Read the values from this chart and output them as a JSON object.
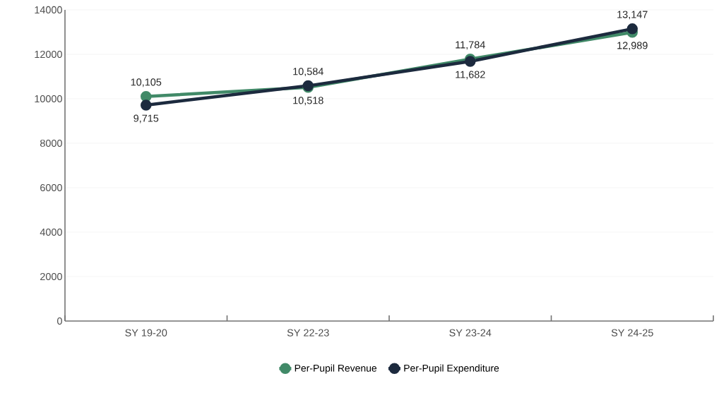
{
  "chart_data": {
    "type": "line",
    "categories": [
      "SY 19-20",
      "SY 22-23",
      "SY 23-24",
      "SY 24-25"
    ],
    "series": [
      {
        "name": "Per-Pupil Revenue",
        "color": "#418a68",
        "values": [
          10105,
          10518,
          11784,
          12989
        ],
        "value_labels": [
          "10,105",
          "10,518",
          "11,784",
          "12,989"
        ]
      },
      {
        "name": "Per-Pupil Expenditure",
        "color": "#1c2a3e",
        "values": [
          9715,
          10584,
          11682,
          13147
        ],
        "value_labels": [
          "9,715",
          "10,584",
          "11,682",
          "13,147"
        ]
      }
    ],
    "ylim": [
      0,
      14000
    ],
    "yticks": [
      0,
      2000,
      4000,
      6000,
      8000,
      10000,
      12000,
      14000
    ],
    "grid": "y",
    "legend": "bottom",
    "marker": "circle",
    "line_style": "solid"
  }
}
